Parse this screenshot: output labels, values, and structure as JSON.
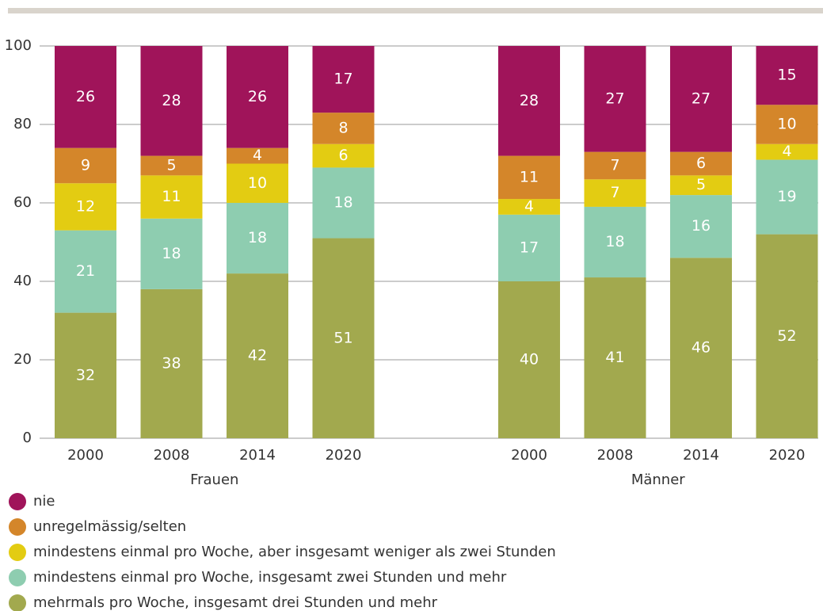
{
  "chart_data": {
    "type": "stacked_bar",
    "categories": [
      "2000",
      "2008",
      "2014",
      "2020",
      "2000",
      "2008",
      "2014",
      "2020"
    ],
    "groups": [
      "Frauen",
      "Männer"
    ],
    "series": [
      {
        "name": "nie",
        "color": "#a0145a",
        "values": [
          26,
          28,
          26,
          17,
          28,
          27,
          27,
          15
        ]
      },
      {
        "name": "unregelmässig/selten",
        "color": "#d4862a",
        "values": [
          9,
          5,
          4,
          8,
          11,
          7,
          6,
          10
        ]
      },
      {
        "name": "mindestens einmal pro Woche, aber insgesamt weniger als zwei Stunden",
        "color": "#e3cc12",
        "values": [
          12,
          11,
          10,
          6,
          4,
          7,
          5,
          4
        ]
      },
      {
        "name": "mindestens einmal pro Woche, insgesamt zwei Stunden und mehr",
        "color": "#8ecdb0",
        "values": [
          21,
          18,
          18,
          18,
          17,
          18,
          16,
          19
        ]
      },
      {
        "name": "mehrmals pro Woche, insgesamt drei Stunden und mehr",
        "color": "#a2a94e",
        "values": [
          32,
          38,
          42,
          51,
          40,
          41,
          46,
          52
        ]
      }
    ],
    "ylim": [
      0,
      100
    ],
    "yticks": [
      0,
      20,
      40,
      60,
      80,
      100
    ],
    "grid": true
  }
}
